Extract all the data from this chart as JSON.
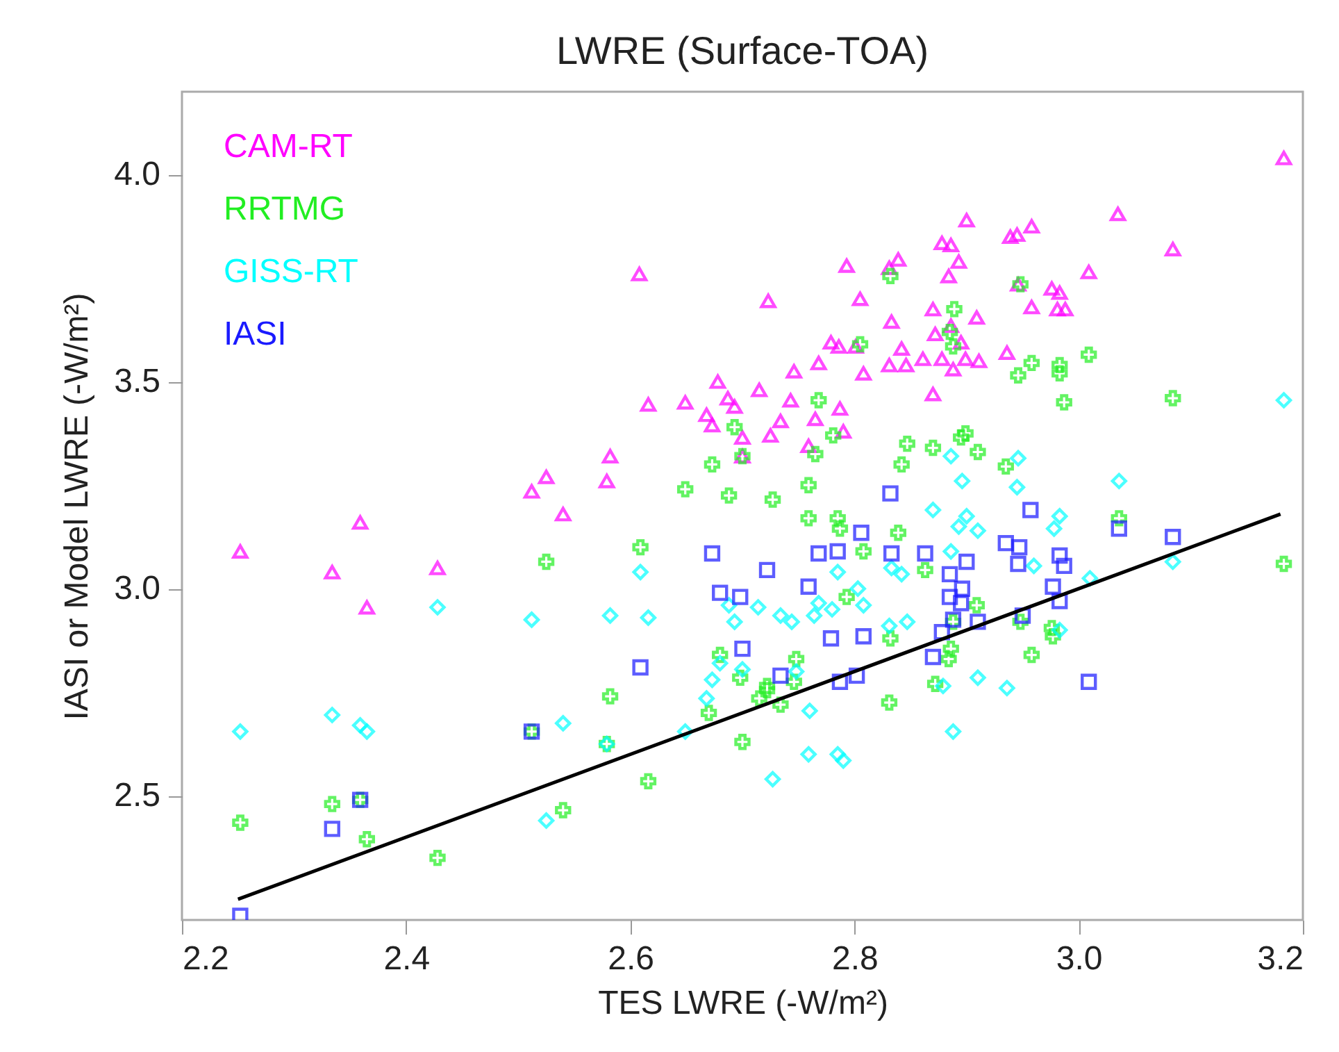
{
  "chart_data": {
    "type": "scatter",
    "title": "LWRE (Surface-TOA)",
    "xlabel": "TES LWRE (-W/m²)",
    "ylabel": "IASI or Model LWRE (-W/m²)",
    "xlim": [
      2.2,
      3.2
    ],
    "xticks": [
      {
        "value": 2.2,
        "label": "2.2"
      },
      {
        "value": 2.4,
        "label": "2.4"
      },
      {
        "value": 2.6,
        "label": "2.6"
      },
      {
        "value": 2.8,
        "label": "2.8"
      },
      {
        "value": 3.0,
        "label": "3.0"
      },
      {
        "value": 3.2,
        "label": "3.2"
      }
    ],
    "ylim": [
      2.2,
      4.2
    ],
    "yticks": [
      {
        "value": 2.5,
        "label": "2.5"
      },
      {
        "value": 3.0,
        "label": "3.0"
      },
      {
        "value": 3.5,
        "label": "3.5"
      },
      {
        "value": 4.0,
        "label": "4.0"
      }
    ],
    "grid": false,
    "legend": "top left",
    "series": [
      {
        "name": "CAM-RT",
        "color": "#ff00ff",
        "marker": "triangle",
        "x": [
          2.252,
          2.334,
          2.359,
          2.365,
          2.428,
          2.512,
          2.525,
          2.54,
          2.579,
          2.582,
          2.608,
          2.616,
          2.649,
          2.668,
          2.673,
          2.678,
          2.687,
          2.693,
          2.7,
          2.7,
          2.715,
          2.723,
          2.725,
          2.734,
          2.743,
          2.746,
          2.759,
          2.765,
          2.768,
          2.779,
          2.786,
          2.787,
          2.79,
          2.793,
          2.801,
          2.805,
          2.808,
          2.831,
          2.831,
          2.833,
          2.839,
          2.842,
          2.846,
          2.861,
          2.87,
          2.87,
          2.872,
          2.878,
          2.878,
          2.884,
          2.886,
          2.886,
          2.888,
          2.893,
          2.895,
          2.899,
          2.9,
          2.909,
          2.911,
          2.936,
          2.939,
          2.945,
          2.946,
          2.958,
          2.958,
          2.976,
          2.981,
          2.983,
          2.988,
          3.009,
          3.035,
          3.084,
          3.183
        ],
        "values": [
          3.09,
          3.04,
          3.16,
          2.955,
          3.05,
          3.235,
          3.27,
          3.18,
          3.26,
          3.32,
          3.76,
          3.445,
          3.45,
          3.42,
          3.395,
          3.5,
          3.46,
          3.44,
          3.365,
          3.32,
          3.48,
          3.695,
          3.37,
          3.405,
          3.455,
          3.525,
          3.345,
          3.41,
          3.545,
          3.595,
          3.585,
          3.435,
          3.38,
          3.78,
          3.585,
          3.7,
          3.52,
          3.775,
          3.54,
          3.645,
          3.795,
          3.58,
          3.54,
          3.555,
          3.675,
          3.47,
          3.615,
          3.835,
          3.555,
          3.755,
          3.83,
          3.635,
          3.53,
          3.79,
          3.595,
          3.555,
          3.89,
          3.655,
          3.55,
          3.57,
          3.85,
          3.855,
          3.735,
          3.875,
          3.68,
          3.725,
          3.675,
          3.715,
          3.675,
          3.765,
          3.905,
          3.82,
          4.04
        ]
      },
      {
        "name": "RRTMG",
        "color": "#22ee22",
        "marker": "cross",
        "x": [
          2.252,
          2.334,
          2.359,
          2.365,
          2.428,
          2.512,
          2.525,
          2.54,
          2.579,
          2.582,
          2.609,
          2.616,
          2.649,
          2.67,
          2.673,
          2.68,
          2.688,
          2.693,
          2.698,
          2.7,
          2.7,
          2.715,
          2.722,
          2.722,
          2.727,
          2.734,
          2.746,
          2.748,
          2.759,
          2.759,
          2.765,
          2.768,
          2.781,
          2.785,
          2.787,
          2.793,
          2.805,
          2.808,
          2.831,
          2.832,
          2.832,
          2.839,
          2.842,
          2.847,
          2.863,
          2.87,
          2.872,
          2.884,
          2.885,
          2.886,
          2.888,
          2.888,
          2.889,
          2.895,
          2.899,
          2.909,
          2.91,
          2.935,
          2.946,
          2.948,
          2.948,
          2.958,
          2.958,
          2.976,
          2.977,
          2.983,
          2.983,
          2.987,
          3.009,
          3.036,
          3.084,
          3.183
        ],
        "values": [
          2.435,
          2.48,
          2.49,
          2.395,
          2.35,
          2.655,
          3.065,
          2.465,
          2.625,
          2.74,
          3.1,
          2.535,
          3.24,
          2.7,
          3.3,
          2.84,
          3.225,
          3.39,
          2.785,
          2.63,
          3.32,
          2.735,
          2.755,
          2.765,
          3.215,
          2.72,
          2.775,
          2.83,
          3.25,
          3.17,
          3.325,
          3.455,
          3.37,
          3.17,
          3.145,
          2.98,
          3.59,
          3.09,
          2.725,
          2.88,
          3.755,
          3.135,
          3.3,
          3.35,
          3.045,
          3.34,
          2.77,
          2.83,
          3.62,
          2.855,
          2.92,
          3.585,
          3.675,
          3.365,
          3.375,
          2.96,
          3.33,
          3.295,
          3.515,
          3.735,
          2.92,
          2.84,
          3.545,
          2.905,
          2.885,
          3.54,
          3.52,
          3.45,
          3.565,
          3.17,
          3.46,
          3.06
        ]
      },
      {
        "name": "GISS-RT",
        "color": "#00ffff",
        "marker": "diamond",
        "x": [
          2.252,
          2.334,
          2.359,
          2.365,
          2.428,
          2.512,
          2.525,
          2.54,
          2.579,
          2.582,
          2.609,
          2.616,
          2.649,
          2.668,
          2.673,
          2.68,
          2.688,
          2.693,
          2.7,
          2.714,
          2.727,
          2.734,
          2.744,
          2.748,
          2.759,
          2.76,
          2.764,
          2.768,
          2.78,
          2.785,
          2.785,
          2.79,
          2.803,
          2.808,
          2.831,
          2.833,
          2.842,
          2.847,
          2.87,
          2.879,
          2.886,
          2.886,
          2.888,
          2.893,
          2.896,
          2.9,
          2.91,
          2.91,
          2.936,
          2.945,
          2.946,
          2.96,
          2.978,
          2.983,
          2.983,
          3.01,
          3.036,
          3.084,
          3.183
        ],
        "values": [
          2.655,
          2.695,
          2.67,
          2.655,
          2.955,
          2.925,
          2.44,
          2.675,
          2.625,
          2.935,
          3.04,
          2.93,
          2.655,
          2.735,
          2.78,
          2.82,
          2.96,
          2.92,
          2.805,
          2.955,
          2.54,
          2.935,
          2.92,
          2.8,
          2.6,
          2.705,
          2.935,
          2.965,
          2.95,
          2.6,
          3.04,
          2.585,
          3.0,
          2.96,
          2.91,
          3.05,
          3.035,
          2.92,
          3.19,
          2.765,
          3.32,
          3.09,
          2.655,
          3.15,
          3.26,
          3.175,
          3.14,
          2.785,
          2.76,
          3.245,
          3.315,
          3.055,
          3.145,
          3.175,
          2.9,
          3.025,
          3.26,
          3.065,
          3.455
        ]
      },
      {
        "name": "IASI",
        "color": "#1a1aff",
        "marker": "square",
        "x": [
          2.252,
          2.334,
          2.359,
          2.512,
          2.609,
          2.673,
          2.68,
          2.698,
          2.7,
          2.722,
          2.734,
          2.759,
          2.768,
          2.779,
          2.785,
          2.787,
          2.802,
          2.806,
          2.808,
          2.832,
          2.833,
          2.863,
          2.87,
          2.878,
          2.885,
          2.885,
          2.888,
          2.895,
          2.896,
          2.9,
          2.91,
          2.935,
          2.946,
          2.947,
          2.95,
          2.957,
          2.977,
          2.983,
          2.983,
          2.987,
          3.009,
          3.036,
          3.084
        ],
        "values": [
          2.21,
          2.42,
          2.49,
          2.655,
          2.81,
          3.085,
          2.99,
          2.98,
          2.855,
          3.045,
          2.79,
          3.005,
          3.085,
          2.88,
          3.09,
          2.775,
          2.79,
          3.135,
          2.885,
          3.23,
          3.085,
          3.085,
          2.835,
          2.895,
          3.035,
          2.98,
          2.925,
          2.965,
          3.0,
          3.065,
          2.92,
          3.11,
          3.06,
          3.1,
          2.935,
          3.19,
          3.005,
          3.08,
          2.97,
          3.055,
          2.775,
          3.145,
          3.125
        ]
      },
      {
        "type": "line",
        "color": "#000000",
        "x": [
          2.25,
          3.18
        ],
        "values": [
          2.25,
          3.18
        ]
      }
    ]
  }
}
